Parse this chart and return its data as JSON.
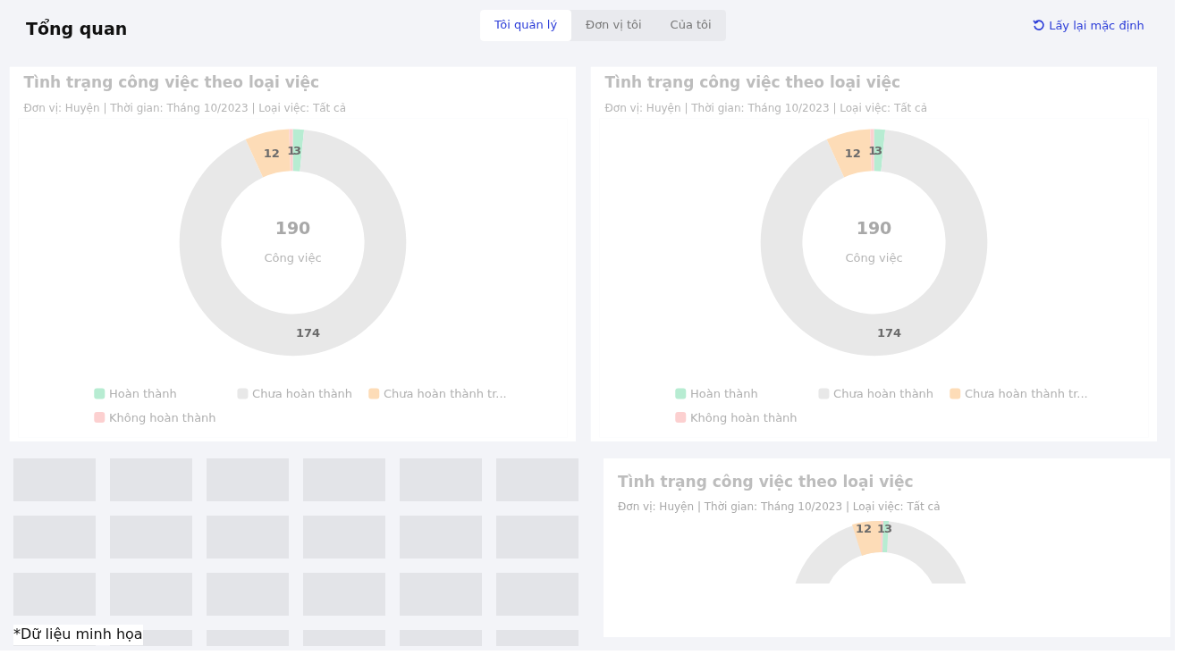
{
  "chart_data": [
    {
      "type": "other",
      "title": "Tổng quan",
      "annotations": [
        "Tôi quản lý",
        "Đơn vị tôi",
        "Của tôi",
        "Lấy lại mặc định",
        "*Dữ liệu minh họa"
      ]
    },
    {
      "type": "donut",
      "title": "Tình trạng công việc theo loại việc",
      "subtitle": "Đơn vị:  Huyện   |   Thời gian:  Tháng 10/2023   |   Loại việc:  Tất cả",
      "categories": [
        "Hoàn thành",
        "Chưa hoàn thành",
        "Chưa hoàn thành tr...",
        "Không hoàn thành"
      ],
      "values": [
        3,
        174,
        12,
        1
      ],
      "colors": [
        "#b7ecd2",
        "#e8e8e8",
        "#fddcb7",
        "#fcd0d0"
      ],
      "data_labels": true,
      "legend": "bottom",
      "annotations": [
        "190",
        "Công việc"
      ]
    },
    {
      "type": "donut",
      "title": "Tình trạng công việc theo loại việc",
      "subtitle": "Đơn vị:  Huyện   |   Thời gian:  Tháng 10/2023   |   Loại việc:  Tất cả",
      "categories": [
        "Hoàn thành",
        "Chưa hoàn thành",
        "Chưa hoàn thành tr...",
        "Không hoàn thành"
      ],
      "values": [
        3,
        174,
        12,
        1
      ],
      "colors": [
        "#b7ecd2",
        "#e8e8e8",
        "#fddcb7",
        "#fcd0d0"
      ],
      "data_labels": true,
      "legend": "bottom",
      "annotations": [
        "190",
        "Công việc"
      ]
    },
    {
      "type": "other",
      "title": "Tình trạng công việc theo loại việc",
      "subtitle": "Đơn vị:  Huyện   |   Thời gian:  Tháng 10/2023   |   Loại việc:  Tất cả",
      "annotations": [
        "12",
        "1",
        "3"
      ]
    }
  ]
}
